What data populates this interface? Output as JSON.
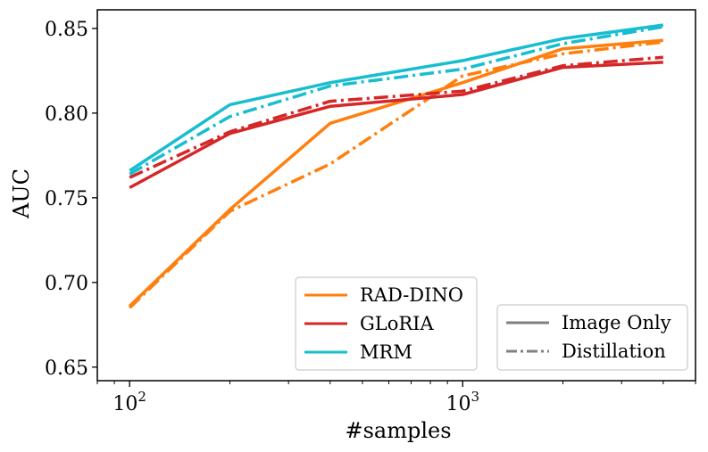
{
  "chart_data": {
    "type": "line",
    "xlabel": "#samples",
    "ylabel": "AUC",
    "xscale": "log",
    "xlim": [
      80,
      5000
    ],
    "ylim": [
      0.642,
      0.861
    ],
    "yticks": [
      "0.65",
      "0.70",
      "0.75",
      "0.80",
      "0.85"
    ],
    "xticks": [
      {
        "base": "10",
        "exp": "2",
        "value": 100
      },
      {
        "base": "10",
        "exp": "3",
        "value": 1000
      }
    ],
    "grid": false,
    "x": [
      100,
      200,
      400,
      1000,
      2000,
      4000
    ],
    "series": [
      {
        "name": "RAD-DINO",
        "method": "Image Only",
        "color": "#ff7f0e",
        "values": [
          0.686,
          0.743,
          0.794,
          0.818,
          0.838,
          0.843
        ]
      },
      {
        "name": "RAD-DINO",
        "method": "Distillation",
        "color": "#ff7f0e",
        "values": [
          0.685,
          0.742,
          0.77,
          0.822,
          0.835,
          0.842
        ]
      },
      {
        "name": "GLoRIA",
        "method": "Image Only",
        "color": "#d62728",
        "values": [
          0.756,
          0.788,
          0.804,
          0.811,
          0.827,
          0.83
        ]
      },
      {
        "name": "GLoRIA",
        "method": "Distillation",
        "color": "#d62728",
        "values": [
          0.762,
          0.789,
          0.807,
          0.813,
          0.828,
          0.833
        ]
      },
      {
        "name": "MRM",
        "method": "Image Only",
        "color": "#17becf",
        "values": [
          0.766,
          0.805,
          0.818,
          0.831,
          0.844,
          0.852
        ]
      },
      {
        "name": "MRM",
        "method": "Distillation",
        "color": "#17becf",
        "values": [
          0.764,
          0.798,
          0.816,
          0.826,
          0.841,
          0.851
        ]
      }
    ],
    "legends": [
      {
        "position": "lower-center",
        "entries": [
          {
            "label": "RAD-DINO",
            "color": "#ff7f0e",
            "style": "solid"
          },
          {
            "label": "GLoRIA",
            "color": "#d62728",
            "style": "solid"
          },
          {
            "label": "MRM",
            "color": "#17becf",
            "style": "solid"
          }
        ]
      },
      {
        "position": "lower-right",
        "entries": [
          {
            "label": "Image Only",
            "color": "#808080",
            "style": "solid"
          },
          {
            "label": "Distillation",
            "color": "#808080",
            "style": "dashdot"
          }
        ]
      }
    ]
  }
}
